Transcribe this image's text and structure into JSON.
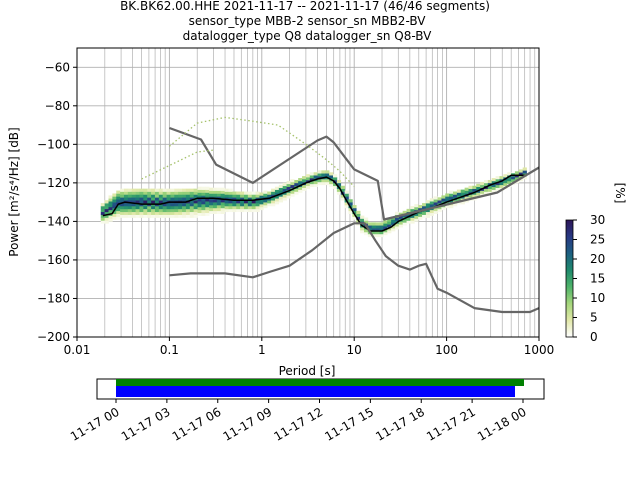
{
  "chart_data": {
    "type": "heatmap",
    "title_lines": [
      "BK.BK62.00.HHE   2021-11-17 -- 2021-11-17  (46/46 segments)",
      "sensor_type MBB-2 sensor_sn MBB2-BV",
      "datalogger_type Q8 datalogger_sn Q8-BV"
    ],
    "xlabel": "Period [s]",
    "ylabel": "Power [m²/s⁴/Hz] [dB]",
    "x_scale": "log",
    "xlim": [
      0.01,
      1000
    ],
    "ylim": [
      -200,
      -50
    ],
    "x_ticks": [
      {
        "value": 0.01,
        "label": "0.01"
      },
      {
        "value": 0.1,
        "label": "0.1"
      },
      {
        "value": 1,
        "label": "1"
      },
      {
        "value": 10,
        "label": "10"
      },
      {
        "value": 100,
        "label": "100"
      },
      {
        "value": 1000,
        "label": "1000"
      }
    ],
    "y_ticks": [
      {
        "value": -60,
        "label": "−60"
      },
      {
        "value": -80,
        "label": "−80"
      },
      {
        "value": -100,
        "label": "−100"
      },
      {
        "value": -120,
        "label": "−120"
      },
      {
        "value": -140,
        "label": "−140"
      },
      {
        "value": -160,
        "label": "−160"
      },
      {
        "value": -180,
        "label": "−180"
      },
      {
        "value": -200,
        "label": "−200"
      }
    ],
    "grid": true,
    "colorbar": {
      "label": "[%]",
      "range": [
        0,
        30
      ],
      "ticks": [
        {
          "value": 0,
          "label": "0"
        },
        {
          "value": 5,
          "label": "5"
        },
        {
          "value": 10,
          "label": "10"
        },
        {
          "value": 15,
          "label": "15"
        },
        {
          "value": 20,
          "label": "20"
        },
        {
          "value": 25,
          "label": "25"
        },
        {
          "value": 30,
          "label": "30"
        }
      ],
      "colors": [
        "#ffffff",
        "#e2e8a9",
        "#a5d67c",
        "#4fb36a",
        "#1f8a6d",
        "#1d5f81",
        "#283883",
        "#2d1659"
      ]
    },
    "series": [
      {
        "role": "mean",
        "color": "#000000",
        "points": [
          [
            0.019,
            -137
          ],
          [
            0.024,
            -136
          ],
          [
            0.028,
            -131
          ],
          [
            0.033,
            -130
          ],
          [
            0.05,
            -131
          ],
          [
            0.08,
            -131
          ],
          [
            0.1,
            -130
          ],
          [
            0.15,
            -130
          ],
          [
            0.2,
            -128
          ],
          [
            0.3,
            -128
          ],
          [
            0.5,
            -129
          ],
          [
            0.8,
            -129
          ],
          [
            1.2,
            -128
          ],
          [
            2,
            -124
          ],
          [
            3,
            -120
          ],
          [
            4,
            -118
          ],
          [
            5,
            -117
          ],
          [
            6,
            -119
          ],
          [
            7,
            -123
          ],
          [
            8,
            -128
          ],
          [
            10,
            -136
          ],
          [
            12,
            -142
          ],
          [
            15,
            -145
          ],
          [
            20,
            -145
          ],
          [
            25,
            -143
          ],
          [
            30,
            -140
          ],
          [
            50,
            -135
          ],
          [
            70,
            -133
          ],
          [
            100,
            -130
          ],
          [
            150,
            -127
          ],
          [
            200,
            -125
          ],
          [
            300,
            -121
          ],
          [
            400,
            -119
          ],
          [
            500,
            -116
          ],
          [
            700,
            -116
          ]
        ]
      },
      {
        "role": "new-high-noise-model",
        "color": "#666666",
        "points": [
          [
            0.1,
            -91.5
          ],
          [
            0.22,
            -97.5
          ],
          [
            0.32,
            -110.5
          ],
          [
            0.8,
            -120
          ],
          [
            4,
            -98
          ],
          [
            5,
            -96
          ],
          [
            6,
            -99
          ],
          [
            10,
            -113
          ],
          [
            18,
            -119
          ],
          [
            21,
            -139
          ],
          [
            354,
            -125
          ],
          [
            1000,
            -112
          ]
        ]
      },
      {
        "role": "new-low-noise-model",
        "color": "#666666",
        "points": [
          [
            0.1,
            -168
          ],
          [
            0.17,
            -167
          ],
          [
            0.4,
            -167
          ],
          [
            0.8,
            -169
          ],
          [
            1.25,
            -166
          ],
          [
            2,
            -163
          ],
          [
            3.5,
            -155
          ],
          [
            6,
            -146
          ],
          [
            10,
            -141
          ],
          [
            13,
            -141
          ],
          [
            17,
            -150
          ],
          [
            22,
            -158
          ],
          [
            30,
            -163
          ],
          [
            40,
            -165
          ],
          [
            50,
            -163
          ],
          [
            60,
            -162
          ],
          [
            80,
            -175
          ],
          [
            100,
            -177
          ],
          [
            200,
            -185
          ],
          [
            400,
            -187
          ],
          [
            800,
            -187
          ],
          [
            1000,
            -185
          ],
          [
            1500,
            -184
          ],
          [
            2500,
            -180
          ],
          [
            3500,
            -178
          ]
        ]
      },
      {
        "role": "min-envelope",
        "color": "#a5c26b",
        "points": [
          [
            0.1,
            -101
          ],
          [
            0.2,
            -89
          ],
          [
            0.4,
            -86
          ],
          [
            0.8,
            -88
          ],
          [
            1.5,
            -90
          ],
          [
            3,
            -100
          ],
          [
            5,
            -108
          ],
          [
            7,
            -114
          ],
          [
            10,
            -122
          ]
        ]
      },
      {
        "role": "max-envelope",
        "color": "#a5c26b",
        "points": [
          [
            0.05,
            -118
          ],
          [
            0.1,
            -111
          ],
          [
            0.2,
            -104
          ],
          [
            0.3,
            -103
          ]
        ]
      }
    ],
    "distribution_band": [
      [
        0.019,
        -141,
        -131
      ],
      [
        0.028,
        -138,
        -124
      ],
      [
        0.05,
        -138,
        -123
      ],
      [
        0.1,
        -138,
        -124
      ],
      [
        0.2,
        -137,
        -123
      ],
      [
        0.4,
        -135,
        -124
      ],
      [
        0.8,
        -135,
        -126
      ],
      [
        1.2,
        -132,
        -125
      ],
      [
        2,
        -127,
        -120
      ],
      [
        3,
        -123,
        -117
      ],
      [
        4,
        -121,
        -115
      ],
      [
        5,
        -120,
        -114
      ],
      [
        6,
        -122,
        -116
      ],
      [
        7,
        -126,
        -120
      ],
      [
        8,
        -131,
        -124
      ],
      [
        10,
        -138,
        -132
      ],
      [
        12,
        -145,
        -138
      ],
      [
        15,
        -148,
        -141
      ],
      [
        20,
        -148,
        -141
      ],
      [
        30,
        -143,
        -136
      ],
      [
        50,
        -139,
        -132
      ],
      [
        100,
        -133,
        -126
      ],
      [
        200,
        -128,
        -122
      ],
      [
        400,
        -123,
        -117
      ],
      [
        700,
        -118,
        -113
      ]
    ],
    "timeline": {
      "tick_labels": [
        "11-17 00",
        "11-17 03",
        "11-17 06",
        "11-17 09",
        "11-17 12",
        "11-17 15",
        "11-17 18",
        "11-17 21",
        "11-18 00"
      ],
      "data_available_color": "#008000",
      "used_segments_color": "#0000ff"
    }
  }
}
